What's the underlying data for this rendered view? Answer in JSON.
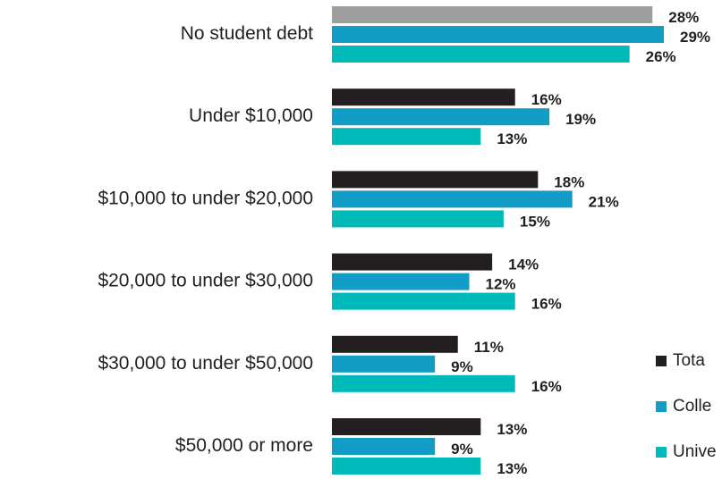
{
  "chart_data": {
    "type": "hbar",
    "categories": [
      "No student debt",
      "Under $10,000",
      "$10,000 to under $20,000",
      "$20,000 to under $30,000",
      "$30,000 to under $50,000",
      "$50,000 or more"
    ],
    "series": [
      {
        "name": "Tota",
        "color": "#231f20",
        "colors": [
          "#9d9d9b",
          "#231f20",
          "#231f20",
          "#231f20",
          "#231f20",
          "#231f20"
        ],
        "values": [
          28,
          16,
          18,
          14,
          11,
          13
        ],
        "value_labels": [
          "28%",
          "16%",
          "18%",
          "14%",
          "11%",
          "13%"
        ]
      },
      {
        "name": "Colle",
        "color": "#119dc6",
        "values": [
          29,
          19,
          21,
          12,
          9,
          9
        ],
        "value_labels": [
          "29%",
          "19%",
          "21%",
          "12%",
          "9%",
          "9%"
        ]
      },
      {
        "name": "Unive",
        "color": "#00b9b9",
        "values": [
          26,
          13,
          15,
          16,
          16,
          13
        ],
        "value_labels": [
          "26%",
          "13%",
          "15%",
          "16%",
          "16%",
          "13%"
        ]
      }
    ],
    "xlim": [
      0,
      34
    ]
  }
}
